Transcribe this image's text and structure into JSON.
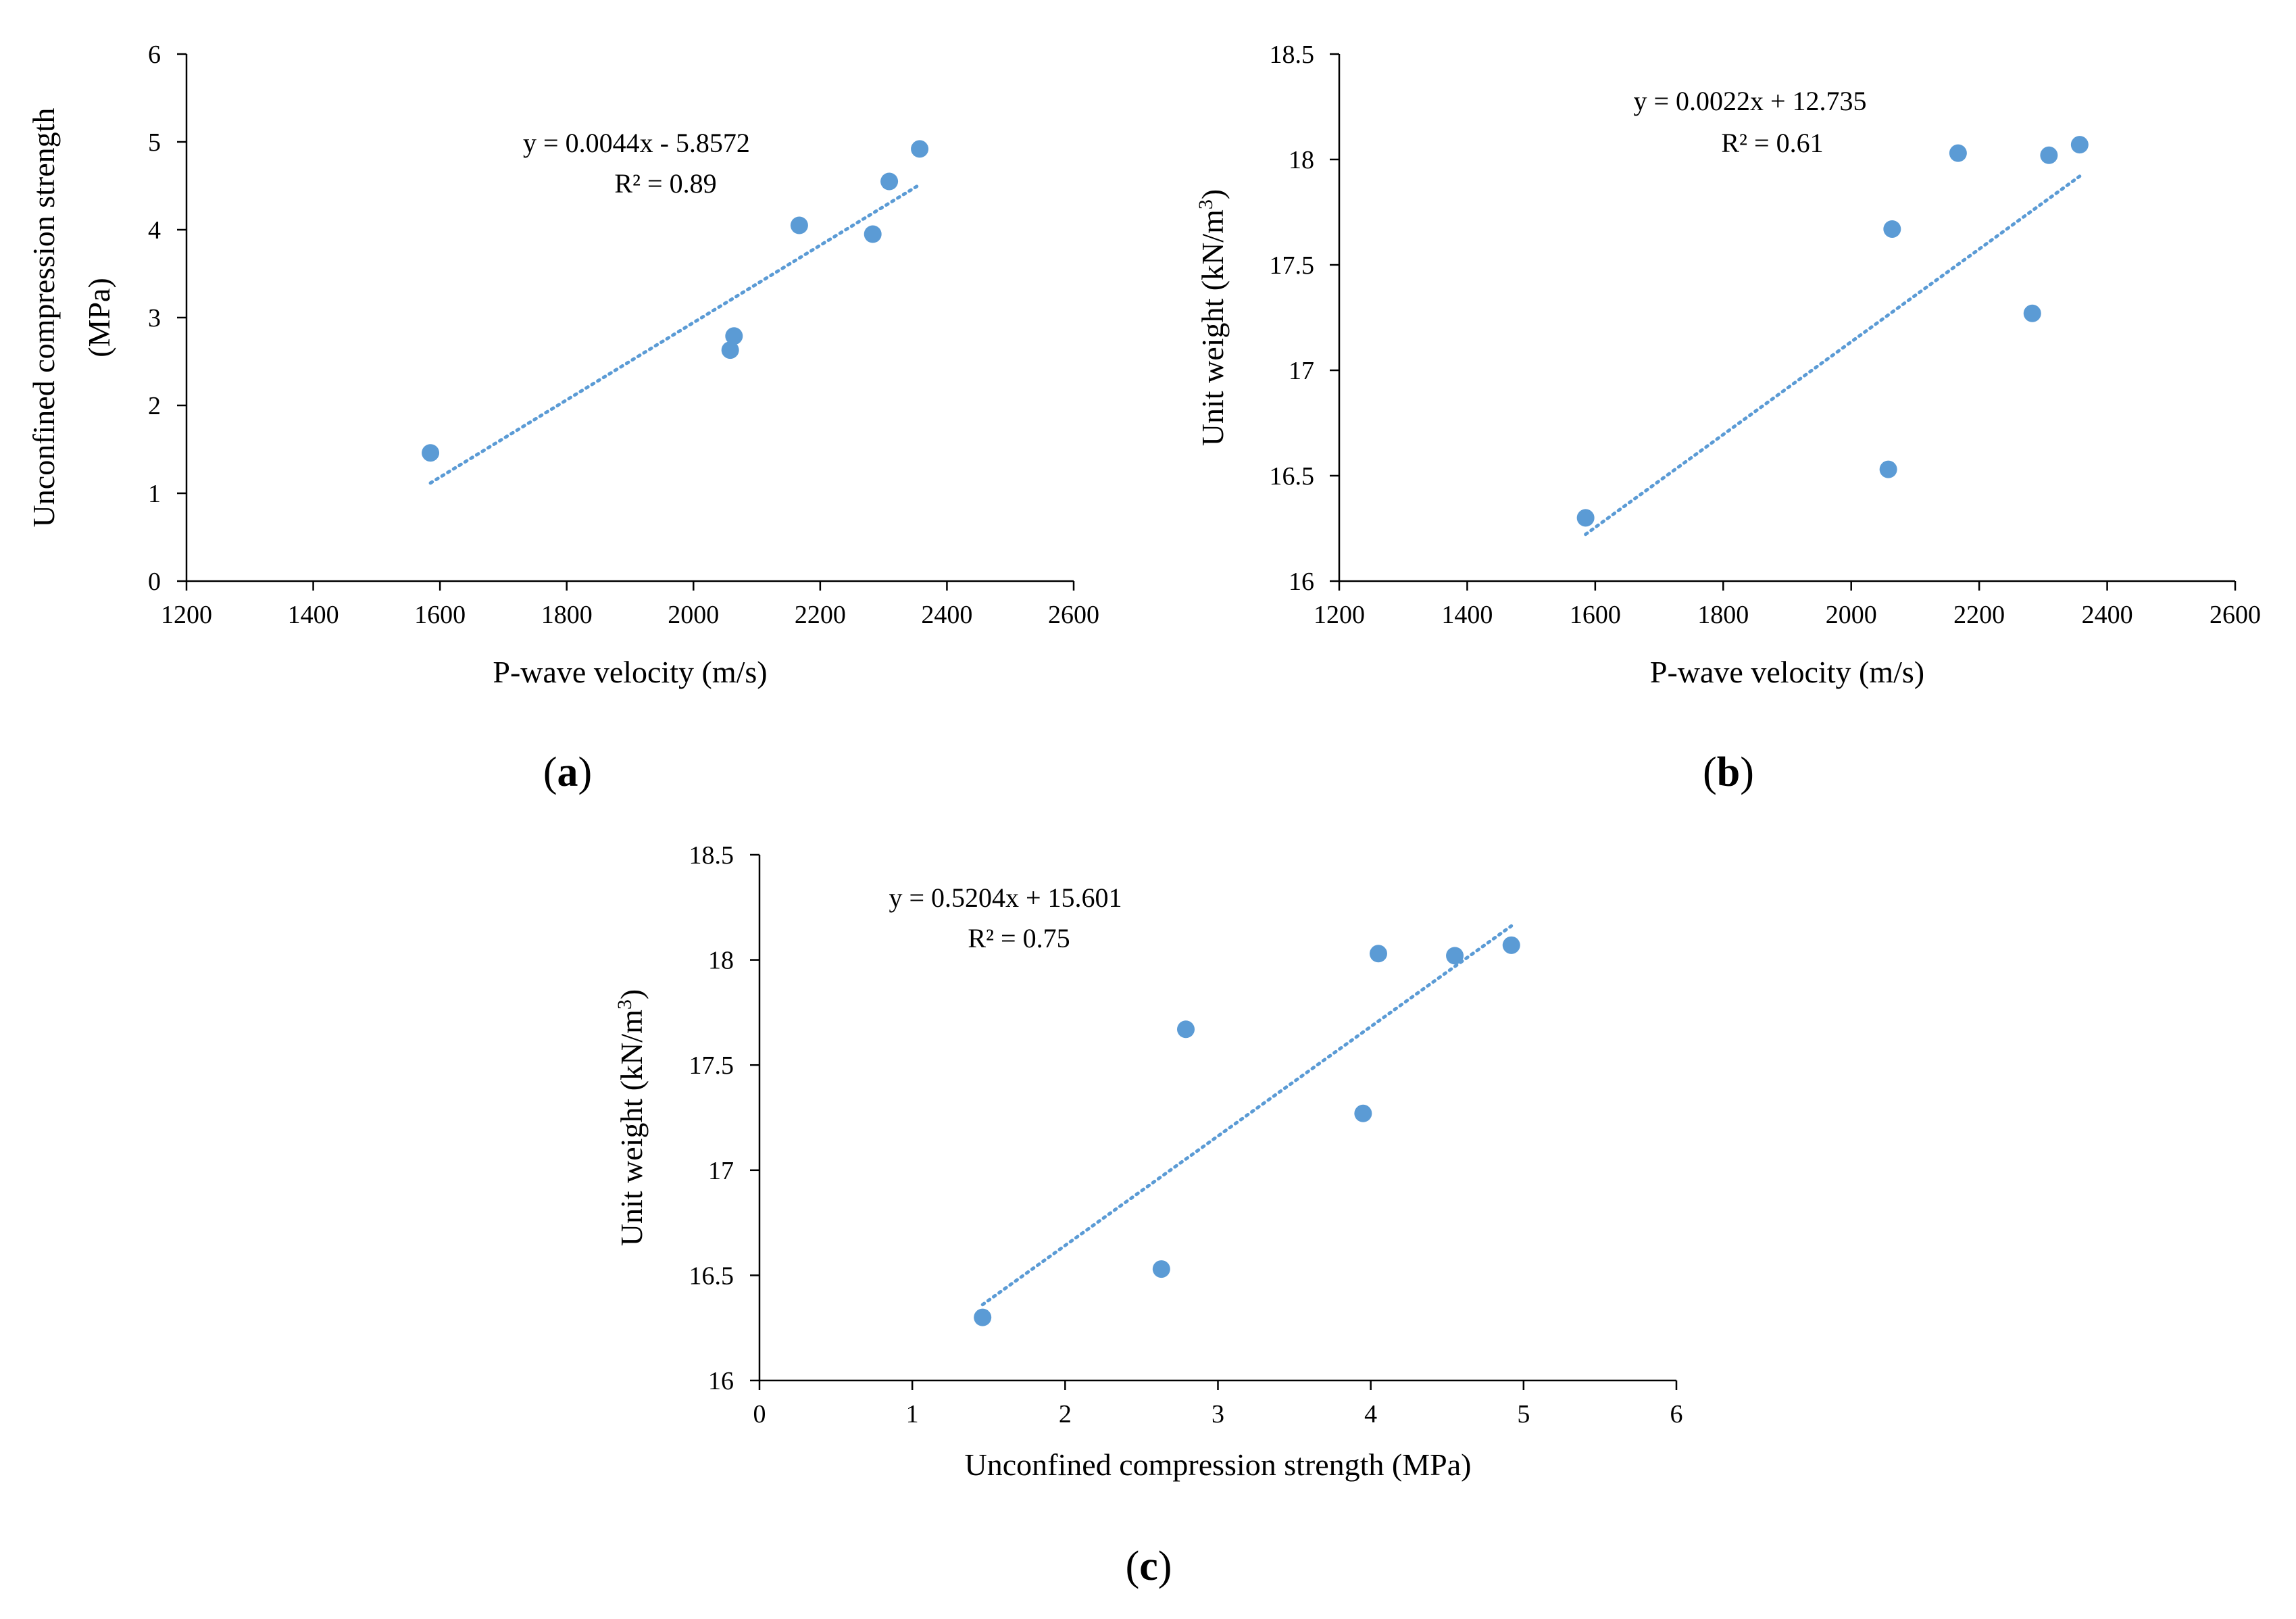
{
  "chart_data": [
    {
      "type": "scatter",
      "panel": "a",
      "xlabel": "P-wave velocity (m/s)",
      "ylabel_lines": [
        "Unconfined compression strength",
        "(MPa)"
      ],
      "xlim": [
        1200,
        2600
      ],
      "ylim": [
        0,
        6
      ],
      "xticks": [
        1200,
        1400,
        1600,
        1800,
        2000,
        2200,
        2400,
        2600
      ],
      "yticks": [
        0,
        1,
        2,
        3,
        4,
        5,
        6
      ],
      "x": [
        1585,
        2058,
        2064,
        2167,
        2283,
        2309,
        2357
      ],
      "y": [
        1.46,
        2.63,
        2.79,
        4.05,
        3.95,
        4.55,
        4.92
      ],
      "trendline": {
        "slope": 0.0044,
        "intercept": -5.8572,
        "x_range": [
          1585,
          2357
        ]
      },
      "equation": "y = 0.0044x - 5.8572",
      "r2": "R² = 0.89",
      "marker_color": "#5B9BD5",
      "trend_color": "#5B9BD5"
    },
    {
      "type": "scatter",
      "panel": "b",
      "xlabel": "P-wave velocity (m/s)",
      "ylabel_text": "Unit weight (kN/m",
      "ylabel_sup": "3",
      "ylabel_close": ")",
      "xlim": [
        1200,
        2600
      ],
      "ylim": [
        16,
        18.5
      ],
      "xticks": [
        1200,
        1400,
        1600,
        1800,
        2000,
        2200,
        2400,
        2600
      ],
      "yticks": [
        16,
        16.5,
        17,
        17.5,
        18,
        18.5
      ],
      "x": [
        1585,
        2058,
        2064,
        2167,
        2283,
        2309,
        2357
      ],
      "y": [
        16.3,
        16.53,
        17.67,
        18.03,
        17.27,
        18.02,
        18.07
      ],
      "trendline": {
        "slope": 0.0022,
        "intercept": 12.735,
        "x_range": [
          1585,
          2357
        ]
      },
      "equation": "y = 0.0022x + 12.735",
      "r2": "R² = 0.61",
      "marker_color": "#5B9BD5",
      "trend_color": "#5B9BD5"
    },
    {
      "type": "scatter",
      "panel": "c",
      "xlabel": "Unconfined compression strength (MPa)",
      "ylabel_text": "Unit weight (kN/m",
      "ylabel_sup": "3",
      "ylabel_close": ")",
      "xlim": [
        0,
        6
      ],
      "ylim": [
        16,
        18.5
      ],
      "xticks": [
        0,
        1,
        2,
        3,
        4,
        5,
        6
      ],
      "yticks": [
        16,
        16.5,
        17,
        17.5,
        18,
        18.5
      ],
      "x": [
        1.46,
        2.63,
        2.79,
        3.95,
        4.05,
        4.55,
        4.92
      ],
      "y": [
        16.3,
        16.53,
        17.67,
        17.27,
        18.03,
        18.02,
        18.07
      ],
      "trendline": {
        "slope": 0.5204,
        "intercept": 15.601,
        "x_range": [
          1.46,
          4.92
        ]
      },
      "equation": "y = 0.5204x + 15.601",
      "r2": "R² = 0.75",
      "marker_color": "#5B9BD5",
      "trend_color": "#5B9BD5"
    }
  ],
  "panel_labels": [
    "a",
    "b",
    "c"
  ]
}
